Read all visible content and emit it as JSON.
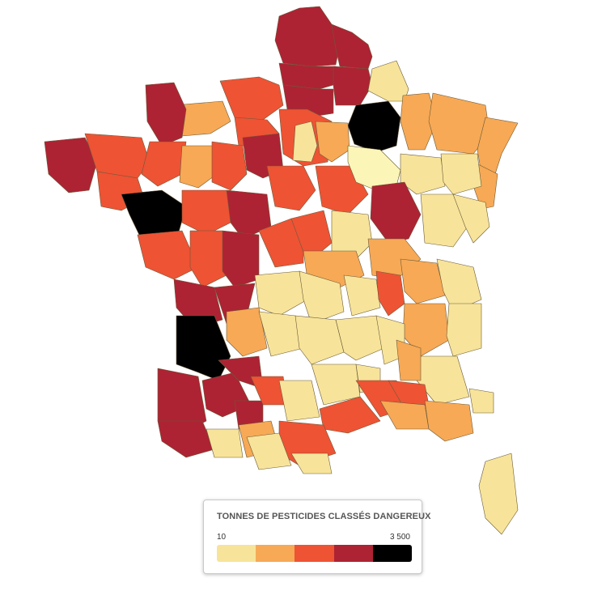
{
  "legend": {
    "title": "TONNES DE PESTICIDES CLASSÉS DANGEREUX",
    "min_label": "10",
    "max_label": "3 500",
    "classes": [
      {
        "color": "#f7e49a"
      },
      {
        "color": "#f7a955"
      },
      {
        "color": "#ee5334"
      },
      {
        "color": "#ad2333"
      },
      {
        "color": "#000000"
      }
    ]
  },
  "map": {
    "colors": {
      "pale": "#fbf6b8",
      "c1": "#f7e49a",
      "c2": "#f7a955",
      "c3": "#ee5334",
      "c4": "#ad2333",
      "c5": "#000000"
    }
  }
}
